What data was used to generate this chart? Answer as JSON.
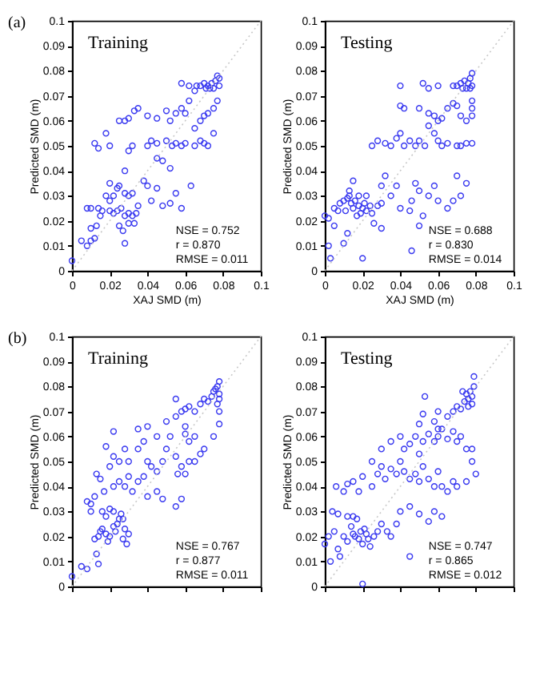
{
  "chart_data": [
    {
      "type": "scatter",
      "title": "Training",
      "xlabel": "XAJ SMD (m)",
      "ylabel": "Predicted SMD (m)",
      "annotations": [
        "(a)",
        "NSE = 0.752",
        "r = 0.870",
        "RMSE = 0.011"
      ],
      "xlim": [
        0,
        0.1
      ],
      "ylim": [
        0,
        0.1
      ],
      "xticks": [
        0,
        0.02,
        0.04,
        0.06,
        0.08,
        0.1
      ],
      "yticks": [
        0,
        0.01,
        0.02,
        0.03,
        0.04,
        0.05,
        0.06,
        0.07,
        0.08,
        0.09,
        0.1
      ],
      "grid": false,
      "marker": "circle",
      "series": [
        {
          "color": "#3a3af0",
          "x": [
            0,
            0.005,
            0.008,
            0.01,
            0.012,
            0.01,
            0.013,
            0.008,
            0.01,
            0.012,
            0.014,
            0.018,
            0.02,
            0.025,
            0.028,
            0.03,
            0.035,
            0.033,
            0.03,
            0.032,
            0.04,
            0.042,
            0.045,
            0.04,
            0.045,
            0.05,
            0.052,
            0.055,
            0.058,
            0.06,
            0.062,
            0.05,
            0.053,
            0.055,
            0.058,
            0.06,
            0.065,
            0.068,
            0.07,
            0.072,
            0.065,
            0.068,
            0.07,
            0.072,
            0.075,
            0.077,
            0.075,
            0.062,
            0.058,
            0.065,
            0.038,
            0.04,
            0.045,
            0.042,
            0.048,
            0.052,
            0.055,
            0.058,
            0.063,
            0.045,
            0.048,
            0.052,
            0.028,
            0.02,
            0.022,
            0.024,
            0.025,
            0.018,
            0.02,
            0.02,
            0.022,
            0.024,
            0.026,
            0.028,
            0.03,
            0.032,
            0.034,
            0.03,
            0.032,
            0.028,
            0.015,
            0.016,
            0.014,
            0.025,
            0.027,
            0.03,
            0.028,
            0.033,
            0.035,
            0.068,
            0.07,
            0.072,
            0.074,
            0.075,
            0.076,
            0.077,
            0.078,
            0.078,
            0.073,
            0.071,
            0.066
          ],
          "values": [
            0.004,
            0.012,
            0.01,
            0.012,
            0.013,
            0.017,
            0.018,
            0.025,
            0.025,
            0.051,
            0.049,
            0.055,
            0.05,
            0.06,
            0.06,
            0.061,
            0.065,
            0.064,
            0.048,
            0.05,
            0.05,
            0.052,
            0.051,
            0.062,
            0.061,
            0.064,
            0.06,
            0.063,
            0.065,
            0.063,
            0.068,
            0.052,
            0.05,
            0.051,
            0.05,
            0.051,
            0.05,
            0.052,
            0.051,
            0.05,
            0.057,
            0.06,
            0.062,
            0.063,
            0.065,
            0.068,
            0.055,
            0.074,
            0.075,
            0.072,
            0.036,
            0.034,
            0.033,
            0.028,
            0.026,
            0.027,
            0.031,
            0.025,
            0.034,
            0.045,
            0.044,
            0.041,
            0.04,
            0.028,
            0.03,
            0.033,
            0.034,
            0.03,
            0.035,
            0.024,
            0.023,
            0.024,
            0.025,
            0.022,
            0.023,
            0.022,
            0.023,
            0.03,
            0.031,
            0.031,
            0.022,
            0.024,
            0.025,
            0.018,
            0.016,
            0.019,
            0.011,
            0.019,
            0.026,
            0.074,
            0.075,
            0.074,
            0.075,
            0.073,
            0.076,
            0.078,
            0.074,
            0.077,
            0.073,
            0.073,
            0.074
          ]
        },
        {
          "type": "line",
          "color": "#c8c8c8",
          "line_style": "dotted",
          "marker": "none",
          "x": [
            0,
            0.1
          ],
          "values": [
            0,
            0.1
          ]
        }
      ]
    },
    {
      "type": "scatter",
      "title": "Testing",
      "xlabel": "XAJ SMD (m)",
      "ylabel": "Predicted SMD (m)",
      "annotations": [
        "NSE = 0.688",
        "r = 0.830",
        "RMSE = 0.014"
      ],
      "xlim": [
        0,
        0.1
      ],
      "ylim": [
        0,
        0.1
      ],
      "xticks": [
        0,
        0.02,
        0.04,
        0.06,
        0.08,
        0.1
      ],
      "yticks": [
        0,
        0.01,
        0.02,
        0.03,
        0.04,
        0.05,
        0.06,
        0.07,
        0.08,
        0.09,
        0.1
      ],
      "grid": false,
      "marker": "circle",
      "series": [
        {
          "color": "#3a3af0",
          "x": [
            0,
            0.002,
            0.005,
            0.007,
            0.008,
            0.01,
            0.012,
            0.013,
            0.014,
            0.015,
            0.016,
            0.018,
            0.02,
            0.021,
            0.022,
            0.024,
            0.025,
            0.011,
            0.017,
            0.019,
            0.013,
            0.015,
            0.018,
            0.022,
            0.028,
            0.03,
            0.005,
            0.002,
            0.003,
            0.01,
            0.012,
            0.02,
            0.026,
            0.03,
            0.03,
            0.032,
            0.035,
            0.038,
            0.04,
            0.045,
            0.046,
            0.048,
            0.05,
            0.052,
            0.05,
            0.055,
            0.058,
            0.06,
            0.065,
            0.068,
            0.07,
            0.072,
            0.075,
            0.046,
            0.025,
            0.028,
            0.032,
            0.035,
            0.038,
            0.04,
            0.042,
            0.045,
            0.048,
            0.05,
            0.053,
            0.055,
            0.058,
            0.06,
            0.062,
            0.065,
            0.07,
            0.072,
            0.075,
            0.078,
            0.04,
            0.042,
            0.05,
            0.055,
            0.058,
            0.06,
            0.062,
            0.065,
            0.068,
            0.07,
            0.072,
            0.075,
            0.078,
            0.078,
            0.078,
            0.04,
            0.052,
            0.055,
            0.06,
            0.068,
            0.07,
            0.072,
            0.074,
            0.075,
            0.076,
            0.077,
            0.078,
            0.078,
            0.073,
            0.077
          ],
          "values": [
            0.022,
            0.021,
            0.025,
            0.024,
            0.027,
            0.028,
            0.029,
            0.03,
            0.027,
            0.025,
            0.028,
            0.026,
            0.025,
            0.027,
            0.024,
            0.026,
            0.023,
            0.024,
            0.022,
            0.023,
            0.032,
            0.036,
            0.03,
            0.03,
            0.026,
            0.027,
            0.018,
            0.01,
            0.005,
            0.011,
            0.015,
            0.005,
            0.019,
            0.017,
            0.034,
            0.038,
            0.03,
            0.034,
            0.025,
            0.024,
            0.028,
            0.035,
            0.032,
            0.022,
            0.018,
            0.03,
            0.034,
            0.028,
            0.025,
            0.028,
            0.038,
            0.03,
            0.035,
            0.008,
            0.05,
            0.052,
            0.051,
            0.05,
            0.053,
            0.055,
            0.05,
            0.052,
            0.05,
            0.052,
            0.05,
            0.058,
            0.055,
            0.052,
            0.05,
            0.051,
            0.05,
            0.05,
            0.051,
            0.051,
            0.066,
            0.065,
            0.065,
            0.063,
            0.062,
            0.06,
            0.061,
            0.065,
            0.067,
            0.066,
            0.062,
            0.06,
            0.065,
            0.068,
            0.062,
            0.074,
            0.075,
            0.073,
            0.074,
            0.074,
            0.074,
            0.075,
            0.076,
            0.073,
            0.075,
            0.077,
            0.079,
            0.074,
            0.073,
            0.073
          ]
        },
        {
          "type": "line",
          "color": "#c8c8c8",
          "line_style": "dotted",
          "marker": "none",
          "x": [
            0,
            0.1
          ],
          "values": [
            0,
            0.1
          ]
        }
      ]
    },
    {
      "type": "scatter",
      "title": "Training",
      "ylabel": "Predicted SMD (m)",
      "annotations": [
        "(b)",
        "NSE = 0.767",
        "r = 0.877",
        "RMSE = 0.011"
      ],
      "xlim": [
        0,
        0.1
      ],
      "ylim": [
        0,
        0.1
      ],
      "xticks": [
        0,
        0.02,
        0.04,
        0.06,
        0.08,
        0.1
      ],
      "yticks": [
        0,
        0.01,
        0.02,
        0.03,
        0.04,
        0.05,
        0.06,
        0.07,
        0.08,
        0.09,
        0.1
      ],
      "tick_labels": "y",
      "grid": false,
      "marker": "circle",
      "series": [
        {
          "color": "#3a3af0",
          "x": [
            0,
            0.005,
            0.008,
            0.013,
            0.014,
            0.012,
            0.014,
            0.015,
            0.016,
            0.018,
            0.019,
            0.02,
            0.022,
            0.023,
            0.024,
            0.025,
            0.026,
            0.027,
            0.028,
            0.03,
            0.029,
            0.027,
            0.022,
            0.02,
            0.018,
            0.016,
            0.01,
            0.008,
            0.01,
            0.012,
            0.017,
            0.013,
            0.015,
            0.022,
            0.025,
            0.028,
            0.03,
            0.032,
            0.035,
            0.038,
            0.04,
            0.045,
            0.048,
            0.055,
            0.058,
            0.02,
            0.022,
            0.025,
            0.028,
            0.03,
            0.035,
            0.038,
            0.04,
            0.042,
            0.045,
            0.048,
            0.05,
            0.052,
            0.055,
            0.058,
            0.06,
            0.062,
            0.065,
            0.068,
            0.07,
            0.062,
            0.065,
            0.075,
            0.078,
            0.078,
            0.018,
            0.022,
            0.035,
            0.04,
            0.05,
            0.055,
            0.058,
            0.06,
            0.062,
            0.065,
            0.068,
            0.07,
            0.072,
            0.074,
            0.075,
            0.076,
            0.077,
            0.078,
            0.078,
            0.077,
            0.078,
            0.055,
            0.06,
            0.045,
            0.056,
            0.06
          ],
          "values": [
            0.004,
            0.008,
            0.007,
            0.013,
            0.009,
            0.019,
            0.02,
            0.022,
            0.023,
            0.021,
            0.018,
            0.02,
            0.024,
            0.022,
            0.025,
            0.027,
            0.029,
            0.027,
            0.023,
            0.021,
            0.017,
            0.019,
            0.03,
            0.031,
            0.028,
            0.03,
            0.033,
            0.034,
            0.03,
            0.036,
            0.038,
            0.045,
            0.043,
            0.04,
            0.042,
            0.04,
            0.044,
            0.038,
            0.042,
            0.044,
            0.036,
            0.038,
            0.035,
            0.032,
            0.035,
            0.048,
            0.052,
            0.05,
            0.055,
            0.05,
            0.055,
            0.058,
            0.05,
            0.048,
            0.06,
            0.05,
            0.055,
            0.06,
            0.052,
            0.048,
            0.045,
            0.05,
            0.05,
            0.053,
            0.055,
            0.058,
            0.06,
            0.06,
            0.065,
            0.07,
            0.056,
            0.062,
            0.063,
            0.064,
            0.066,
            0.068,
            0.07,
            0.071,
            0.072,
            0.07,
            0.073,
            0.075,
            0.074,
            0.076,
            0.078,
            0.079,
            0.08,
            0.082,
            0.077,
            0.073,
            0.075,
            0.075,
            0.061,
            0.046,
            0.045,
            0.064
          ]
        },
        {
          "type": "line",
          "color": "#c8c8c8",
          "line_style": "dotted",
          "marker": "none",
          "x": [
            0,
            0.1
          ],
          "values": [
            0,
            0.1
          ]
        }
      ]
    },
    {
      "type": "scatter",
      "title": "Testing",
      "ylabel": "Predicted SMD (m)",
      "annotations": [
        "NSE = 0.747",
        "r = 0.865",
        "RMSE = 0.012"
      ],
      "xlim": [
        0,
        0.1
      ],
      "ylim": [
        0,
        0.1
      ],
      "xticks": [
        0,
        0.02,
        0.04,
        0.06,
        0.08,
        0.1
      ],
      "yticks": [
        0,
        0.01,
        0.02,
        0.03,
        0.04,
        0.05,
        0.06,
        0.07,
        0.08,
        0.09,
        0.1
      ],
      "tick_labels": "y",
      "grid": false,
      "marker": "circle",
      "series": [
        {
          "color": "#3a3af0",
          "x": [
            0,
            0.002,
            0.005,
            0.007,
            0.01,
            0.012,
            0.014,
            0.015,
            0.016,
            0.018,
            0.019,
            0.02,
            0.021,
            0.022,
            0.023,
            0.024,
            0.017,
            0.015,
            0.012,
            0.008,
            0.004,
            0.007,
            0.003,
            0.026,
            0.028,
            0.03,
            0.033,
            0.035,
            0.038,
            0.04,
            0.045,
            0.05,
            0.055,
            0.058,
            0.062,
            0.065,
            0.068,
            0.07,
            0.075,
            0.08,
            0.045,
            0.02,
            0.006,
            0.01,
            0.012,
            0.015,
            0.018,
            0.02,
            0.025,
            0.028,
            0.03,
            0.032,
            0.035,
            0.038,
            0.04,
            0.042,
            0.045,
            0.048,
            0.05,
            0.052,
            0.055,
            0.058,
            0.06,
            0.062,
            0.025,
            0.03,
            0.035,
            0.04,
            0.042,
            0.045,
            0.048,
            0.05,
            0.052,
            0.055,
            0.058,
            0.06,
            0.062,
            0.065,
            0.068,
            0.07,
            0.072,
            0.075,
            0.078,
            0.078,
            0.05,
            0.052,
            0.058,
            0.06,
            0.065,
            0.068,
            0.07,
            0.072,
            0.074,
            0.075,
            0.076,
            0.077,
            0.078,
            0.079,
            0.078,
            0.079,
            0.073,
            0.076,
            0.053,
            0.06
          ],
          "values": [
            0.017,
            0.02,
            0.022,
            0.015,
            0.02,
            0.018,
            0.024,
            0.021,
            0.02,
            0.019,
            0.022,
            0.017,
            0.023,
            0.021,
            0.019,
            0.016,
            0.027,
            0.028,
            0.028,
            0.012,
            0.03,
            0.029,
            0.01,
            0.02,
            0.022,
            0.025,
            0.022,
            0.02,
            0.025,
            0.03,
            0.032,
            0.029,
            0.026,
            0.03,
            0.028,
            0.038,
            0.042,
            0.04,
            0.042,
            0.045,
            0.012,
            0.001,
            0.04,
            0.038,
            0.041,
            0.042,
            0.038,
            0.044,
            0.04,
            0.045,
            0.048,
            0.043,
            0.047,
            0.045,
            0.05,
            0.046,
            0.043,
            0.045,
            0.042,
            0.048,
            0.043,
            0.04,
            0.046,
            0.04,
            0.05,
            0.055,
            0.058,
            0.06,
            0.055,
            0.057,
            0.06,
            0.053,
            0.058,
            0.061,
            0.058,
            0.06,
            0.063,
            0.059,
            0.062,
            0.058,
            0.06,
            0.055,
            0.05,
            0.055,
            0.065,
            0.069,
            0.066,
            0.07,
            0.068,
            0.07,
            0.072,
            0.071,
            0.074,
            0.077,
            0.075,
            0.078,
            0.073,
            0.08,
            0.076,
            0.084,
            0.078,
            0.072,
            0.076,
            0.063
          ]
        },
        {
          "type": "line",
          "color": "#c8c8c8",
          "line_style": "dotted",
          "marker": "none",
          "x": [
            0,
            0.1
          ],
          "values": [
            0,
            0.1
          ]
        }
      ]
    }
  ]
}
